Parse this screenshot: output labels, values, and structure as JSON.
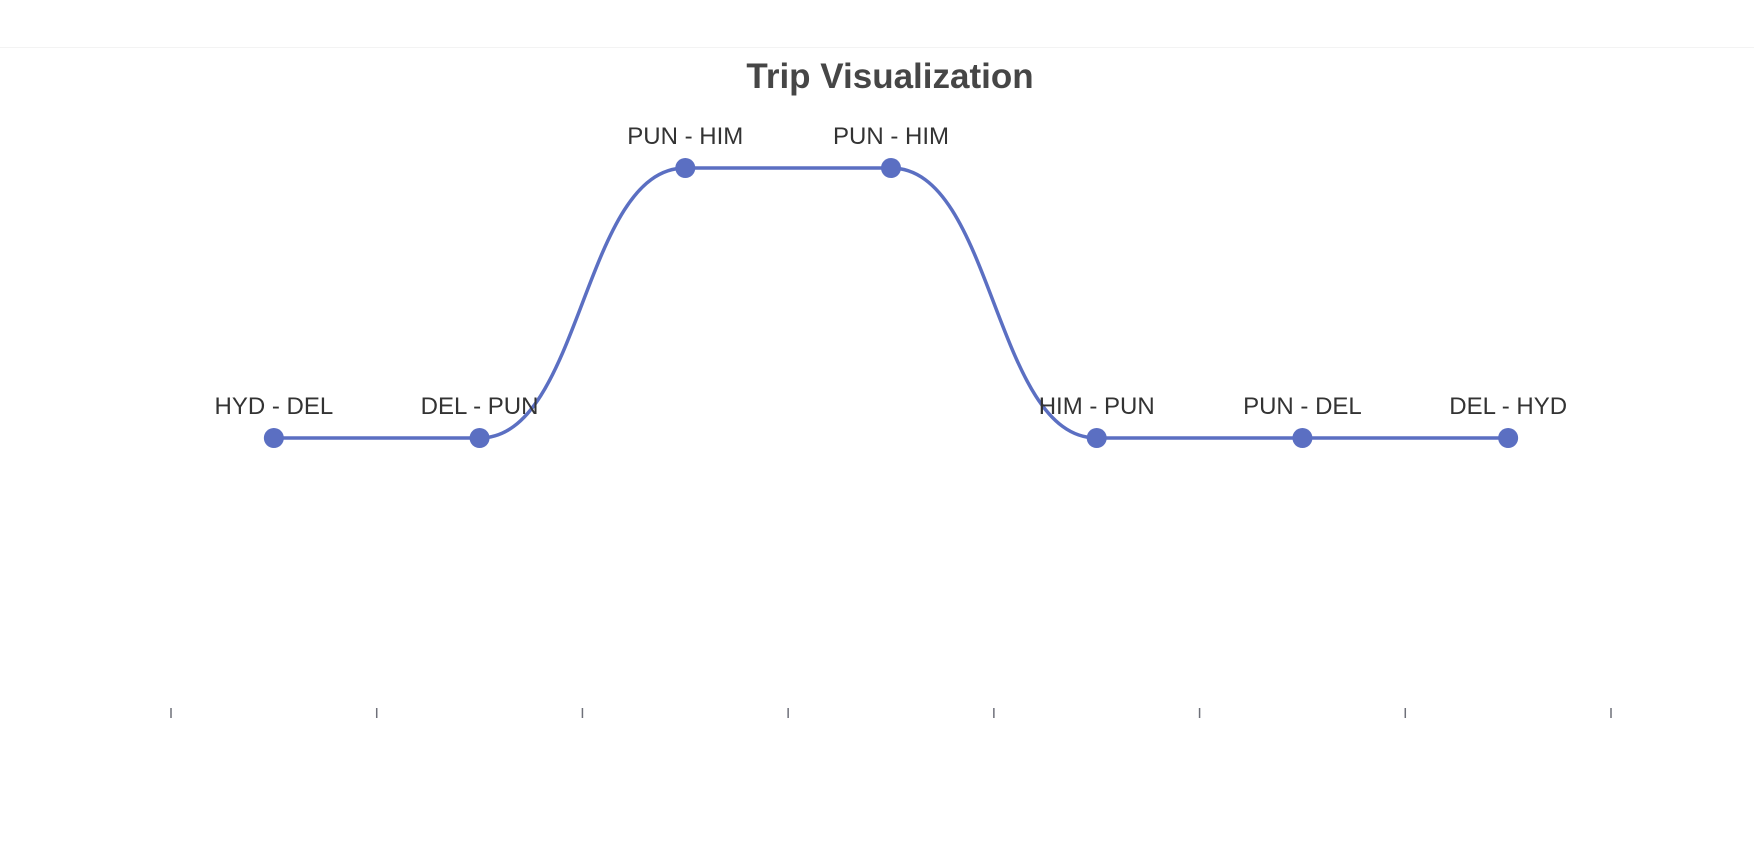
{
  "chart_data": {
    "type": "line",
    "title": "Trip Visualization",
    "xlabel": "",
    "ylabel": "",
    "line_style": "smooth",
    "color": "#5b6fc2",
    "grid": false,
    "legend": "none",
    "xlim": [
      0,
      7
    ],
    "x_ticks": [
      0,
      1,
      2,
      3,
      4,
      5,
      6,
      7
    ],
    "ylim": [
      -1,
      0.5
    ],
    "points": [
      {
        "x": 0.5,
        "y": 0,
        "label": "HYD - DEL"
      },
      {
        "x": 1.5,
        "y": 0,
        "label": "DEL - PUN"
      },
      {
        "x": 2.5,
        "y": 1,
        "label": "PUN - HIM"
      },
      {
        "x": 3.5,
        "y": 1,
        "label": "PUN - HIM"
      },
      {
        "x": 4.5,
        "y": 0,
        "label": "HIM - PUN"
      },
      {
        "x": 5.5,
        "y": 0,
        "label": "PUN - DEL"
      },
      {
        "x": 6.5,
        "y": 0,
        "label": "DEL - HYD"
      }
    ]
  }
}
